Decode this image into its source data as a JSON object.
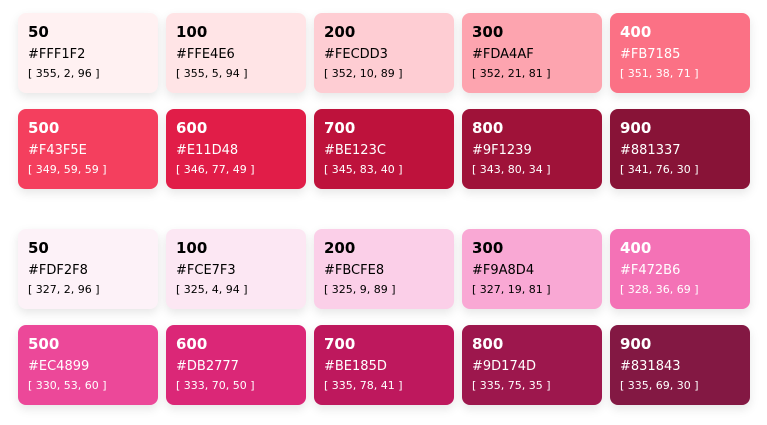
{
  "palettes": [
    {
      "swatches": [
        {
          "shade": "50",
          "hex": "#FFF1F2",
          "hsl": "[ 355, 2, 96 ]",
          "color": "#FFF1F2",
          "text_color": "#000000"
        },
        {
          "shade": "100",
          "hex": "#FFE4E6",
          "hsl": "[ 355, 5, 94 ]",
          "color": "#FFE4E6",
          "text_color": "#000000"
        },
        {
          "shade": "200",
          "hex": "#FECDD3",
          "hsl": "[ 352, 10, 89 ]",
          "color": "#FECDD3",
          "text_color": "#000000"
        },
        {
          "shade": "300",
          "hex": "#FDA4AF",
          "hsl": "[ 352, 21, 81 ]",
          "color": "#FDA4AF",
          "text_color": "#000000"
        },
        {
          "shade": "400",
          "hex": "#FB7185",
          "hsl": "[ 351, 38, 71 ]",
          "color": "#FB7185",
          "text_color": "#ffffff"
        },
        {
          "shade": "500",
          "hex": "#F43F5E",
          "hsl": "[ 349, 59, 59 ]",
          "color": "#F43F5E",
          "text_color": "#ffffff"
        },
        {
          "shade": "600",
          "hex": "#E11D48",
          "hsl": "[ 346, 77, 49 ]",
          "color": "#E11D48",
          "text_color": "#ffffff"
        },
        {
          "shade": "700",
          "hex": "#BE123C",
          "hsl": "[ 345, 83, 40 ]",
          "color": "#BE123C",
          "text_color": "#ffffff"
        },
        {
          "shade": "800",
          "hex": "#9F1239",
          "hsl": "[ 343, 80, 34 ]",
          "color": "#9F1239",
          "text_color": "#ffffff"
        },
        {
          "shade": "900",
          "hex": "#881337",
          "hsl": "[ 341, 76, 30 ]",
          "color": "#881337",
          "text_color": "#ffffff"
        }
      ]
    },
    {
      "swatches": [
        {
          "shade": "50",
          "hex": "#FDF2F8",
          "hsl": "[ 327, 2, 96 ]",
          "color": "#FDF2F8",
          "text_color": "#000000"
        },
        {
          "shade": "100",
          "hex": "#FCE7F3",
          "hsl": "[ 325, 4, 94 ]",
          "color": "#FCE7F3",
          "text_color": "#000000"
        },
        {
          "shade": "200",
          "hex": "#FBCFE8",
          "hsl": "[ 325, 9, 89 ]",
          "color": "#FBCFE8",
          "text_color": "#000000"
        },
        {
          "shade": "300",
          "hex": "#F9A8D4",
          "hsl": "[ 327, 19, 81 ]",
          "color": "#F9A8D4",
          "text_color": "#000000"
        },
        {
          "shade": "400",
          "hex": "#F472B6",
          "hsl": "[ 328, 36, 69 ]",
          "color": "#F472B6",
          "text_color": "#ffffff"
        },
        {
          "shade": "500",
          "hex": "#EC4899",
          "hsl": "[ 330, 53, 60 ]",
          "color": "#EC4899",
          "text_color": "#ffffff"
        },
        {
          "shade": "600",
          "hex": "#DB2777",
          "hsl": "[ 333, 70, 50 ]",
          "color": "#DB2777",
          "text_color": "#ffffff"
        },
        {
          "shade": "700",
          "hex": "#BE185D",
          "hsl": "[ 335, 78, 41 ]",
          "color": "#BE185D",
          "text_color": "#ffffff"
        },
        {
          "shade": "800",
          "hex": "#9D174D",
          "hsl": "[ 335, 75, 35 ]",
          "color": "#9D174D",
          "text_color": "#ffffff"
        },
        {
          "shade": "900",
          "hex": "#831843",
          "hsl": "[ 335, 69, 30 ]",
          "color": "#831843",
          "text_color": "#ffffff"
        }
      ]
    }
  ]
}
